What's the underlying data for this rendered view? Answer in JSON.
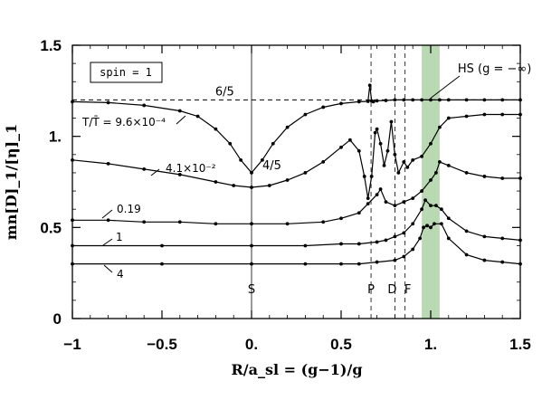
{
  "chart_data": {
    "type": "line",
    "xlabel": "R/a_sl = (g−1)/g",
    "ylabel": "mn[D]_1/[η]_1",
    "xlim": [
      -1,
      1.5
    ],
    "ylim": [
      0,
      1.5
    ],
    "x_ticks": [
      -1,
      -0.5,
      0,
      0.5,
      1,
      1.5
    ],
    "x_tick_labels": [
      "−1",
      "−0.5",
      "0.",
      "0.5",
      "1.",
      "1.5"
    ],
    "y_ticks": [
      0,
      0.5,
      1,
      1.5
    ],
    "y_tick_labels": [
      "0",
      "0.5",
      "1.",
      "1.5"
    ],
    "legend_box": "spin = 1",
    "shaded_band": {
      "x0": 0.95,
      "x1": 1.05,
      "color": "#b9d9b2",
      "label": "HS (g = −∞)"
    },
    "reference_lines": [
      {
        "orientation": "horizontal",
        "y": 1.2,
        "style": "dashed",
        "label": "6/5"
      },
      {
        "orientation": "vertical",
        "x": 0,
        "style": "solid",
        "label": "S"
      },
      {
        "orientation": "vertical",
        "x": 0.667,
        "style": "dashed",
        "label": "P"
      },
      {
        "orientation": "vertical",
        "x": 0.8,
        "style": "dashed",
        "label": "D"
      },
      {
        "orientation": "vertical",
        "x": 0.857,
        "style": "dashed",
        "label": "F"
      }
    ],
    "annotations": [
      {
        "text": "4/5",
        "x": 0,
        "y": 0.8
      }
    ],
    "series": [
      {
        "name": "T/T̄ = 9.6×10⁻⁴",
        "x": [
          -1,
          -0.8,
          -0.6,
          -0.4,
          -0.3,
          -0.2,
          -0.12,
          -0.06,
          0,
          0.06,
          0.12,
          0.2,
          0.3,
          0.4,
          0.5,
          0.6,
          0.65,
          0.66,
          0.67,
          0.68,
          0.7,
          0.75,
          0.8,
          0.85,
          0.9,
          0.95,
          1.0,
          1.05,
          1.1,
          1.2,
          1.3,
          1.4,
          1.5
        ],
        "y": [
          1.19,
          1.185,
          1.17,
          1.14,
          1.11,
          1.04,
          0.96,
          0.87,
          0.8,
          0.87,
          0.96,
          1.05,
          1.12,
          1.16,
          1.18,
          1.19,
          1.192,
          1.28,
          1.195,
          1.19,
          1.195,
          1.197,
          1.2,
          1.2,
          1.2,
          1.2,
          1.2,
          1.2,
          1.2,
          1.2,
          1.2,
          1.2,
          1.2
        ]
      },
      {
        "name": "4.1×10⁻²",
        "x": [
          -1,
          -0.8,
          -0.6,
          -0.4,
          -0.2,
          -0.1,
          0,
          0.1,
          0.2,
          0.3,
          0.4,
          0.5,
          0.55,
          0.6,
          0.63,
          0.65,
          0.67,
          0.69,
          0.7,
          0.72,
          0.74,
          0.76,
          0.78,
          0.8,
          0.82,
          0.85,
          0.87,
          0.9,
          0.95,
          1.0,
          1.05,
          1.1,
          1.2,
          1.3,
          1.4,
          1.5
        ],
        "y": [
          0.87,
          0.85,
          0.82,
          0.79,
          0.75,
          0.73,
          0.72,
          0.73,
          0.76,
          0.8,
          0.86,
          0.94,
          0.98,
          0.92,
          0.78,
          0.66,
          0.78,
          1.02,
          1.04,
          0.96,
          0.84,
          0.92,
          1.08,
          0.9,
          0.8,
          0.86,
          0.83,
          0.87,
          0.89,
          0.96,
          1.05,
          1.1,
          1.11,
          1.12,
          1.12,
          1.12
        ]
      },
      {
        "name": "0.19",
        "x": [
          -1,
          -0.8,
          -0.6,
          -0.4,
          -0.2,
          0,
          0.2,
          0.4,
          0.5,
          0.6,
          0.65,
          0.7,
          0.72,
          0.75,
          0.8,
          0.85,
          0.9,
          0.95,
          1.0,
          1.03,
          1.05,
          1.1,
          1.2,
          1.3,
          1.4,
          1.5
        ],
        "y": [
          0.54,
          0.54,
          0.53,
          0.53,
          0.52,
          0.52,
          0.52,
          0.53,
          0.55,
          0.58,
          0.63,
          0.68,
          0.71,
          0.64,
          0.62,
          0.64,
          0.66,
          0.7,
          0.76,
          0.8,
          0.86,
          0.84,
          0.8,
          0.78,
          0.77,
          0.77
        ]
      },
      {
        "name": "1",
        "x": [
          -1,
          -0.5,
          0,
          0.3,
          0.5,
          0.6,
          0.7,
          0.75,
          0.8,
          0.85,
          0.9,
          0.95,
          0.97,
          1.0,
          1.03,
          1.06,
          1.1,
          1.2,
          1.3,
          1.4,
          1.5
        ],
        "y": [
          0.4,
          0.4,
          0.4,
          0.4,
          0.41,
          0.41,
          0.42,
          0.43,
          0.45,
          0.47,
          0.52,
          0.6,
          0.65,
          0.62,
          0.62,
          0.6,
          0.55,
          0.48,
          0.45,
          0.44,
          0.43
        ]
      },
      {
        "name": "4",
        "x": [
          -1,
          -0.5,
          0,
          0.3,
          0.5,
          0.6,
          0.7,
          0.8,
          0.85,
          0.9,
          0.94,
          0.96,
          0.98,
          1.0,
          1.02,
          1.06,
          1.1,
          1.2,
          1.3,
          1.4,
          1.5
        ],
        "y": [
          0.3,
          0.3,
          0.3,
          0.3,
          0.3,
          0.3,
          0.31,
          0.32,
          0.34,
          0.38,
          0.44,
          0.5,
          0.51,
          0.5,
          0.52,
          0.52,
          0.44,
          0.35,
          0.32,
          0.31,
          0.3
        ]
      }
    ]
  }
}
